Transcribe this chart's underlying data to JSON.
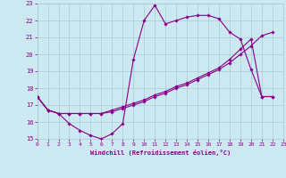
{
  "xlabel": "Windchill (Refroidissement éolien,°C)",
  "background_color": "#cce8f0",
  "grid_color": "#aaccd4",
  "line_color": "#880088",
  "xlim": [
    0,
    23
  ],
  "ylim": [
    15,
    23
  ],
  "yticks": [
    15,
    16,
    17,
    18,
    19,
    20,
    21,
    22,
    23
  ],
  "xticks": [
    0,
    1,
    2,
    3,
    4,
    5,
    6,
    7,
    8,
    9,
    10,
    11,
    12,
    13,
    14,
    15,
    16,
    17,
    18,
    19,
    20,
    21,
    22,
    23
  ],
  "series1_x": [
    0,
    1,
    2,
    3,
    4,
    5,
    6,
    7,
    8,
    9,
    10,
    11,
    12,
    13,
    14,
    15,
    16,
    17,
    18,
    19,
    20,
    21,
    22
  ],
  "series1_y": [
    17.5,
    16.7,
    16.5,
    15.9,
    15.5,
    15.2,
    15.0,
    15.3,
    15.9,
    19.7,
    22.0,
    22.9,
    21.8,
    22.0,
    22.2,
    22.3,
    22.3,
    22.1,
    21.3,
    20.9,
    19.1,
    17.5,
    17.5
  ],
  "series2_x": [
    0,
    1,
    2,
    3,
    4,
    5,
    6,
    7,
    8,
    9,
    10,
    11,
    12,
    13,
    14,
    15,
    16,
    17,
    18,
    19,
    20,
    21,
    22
  ],
  "series2_y": [
    17.5,
    16.7,
    16.5,
    16.5,
    16.5,
    16.5,
    16.5,
    16.6,
    16.8,
    17.0,
    17.2,
    17.5,
    17.7,
    18.0,
    18.2,
    18.5,
    18.8,
    19.1,
    19.5,
    20.0,
    20.5,
    21.1,
    21.3
  ],
  "series3_x": [
    0,
    1,
    2,
    3,
    4,
    5,
    6,
    7,
    8,
    9,
    10,
    11,
    12,
    13,
    14,
    15,
    16,
    17,
    18,
    19,
    20,
    21,
    22
  ],
  "series3_y": [
    17.5,
    16.7,
    16.5,
    16.5,
    16.5,
    16.5,
    16.5,
    16.7,
    16.9,
    17.1,
    17.3,
    17.6,
    17.8,
    18.1,
    18.3,
    18.6,
    18.9,
    19.2,
    19.7,
    20.3,
    20.9,
    17.5,
    17.5
  ]
}
